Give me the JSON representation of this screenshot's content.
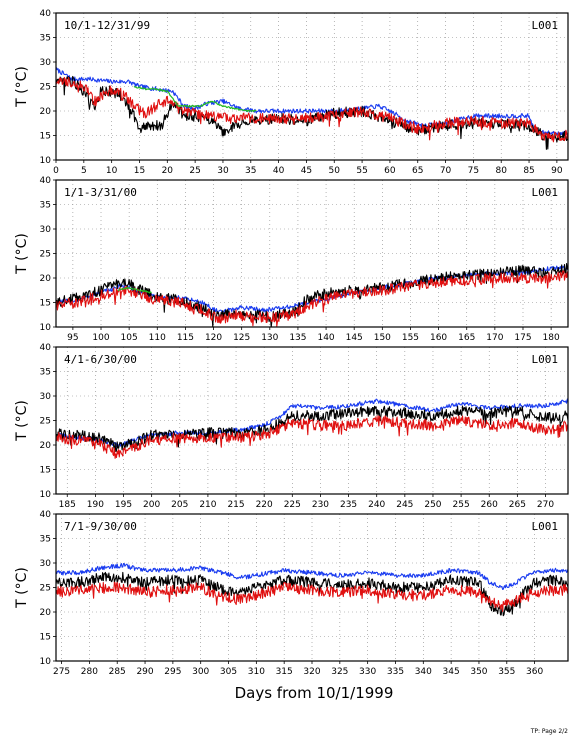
{
  "figure": {
    "xlabel": "Days from 10/1/1999",
    "footer": "TP: Page 2/2"
  },
  "chart_data": [
    {
      "type": "line",
      "title": "10/1-12/31/99",
      "station": "L001",
      "ylabel": "T (°C)",
      "xlim": [
        0,
        92
      ],
      "ylim": [
        10,
        40
      ],
      "xticks": [
        0,
        5,
        10,
        15,
        20,
        25,
        30,
        35,
        40,
        45,
        50,
        55,
        60,
        65,
        70,
        75,
        80,
        85,
        90
      ],
      "yticks": [
        10,
        15,
        20,
        25,
        30,
        35,
        40
      ],
      "grid": true,
      "series": [
        {
          "color": "#1a3cf0",
          "x": [
            0,
            3,
            6,
            10,
            13,
            15,
            18,
            21,
            23,
            25,
            27,
            30,
            33,
            36,
            40,
            45,
            50,
            55,
            58,
            60,
            63,
            66,
            70,
            75,
            79,
            82,
            85,
            86,
            88,
            90,
            92
          ],
          "y": [
            28.5,
            26.5,
            26.5,
            26,
            26,
            25,
            24.5,
            24,
            21,
            20.5,
            21.5,
            22,
            20.5,
            20,
            20,
            20,
            20,
            20.5,
            21,
            20,
            18,
            17,
            17.5,
            19,
            19,
            19,
            19,
            16,
            15.5,
            15.5,
            15.5
          ]
        },
        {
          "color": "#000000",
          "x": [
            0,
            3,
            5,
            7,
            8,
            10,
            12,
            14,
            15,
            17,
            19,
            21,
            23,
            25,
            28,
            30,
            32,
            35,
            40,
            45,
            50,
            55,
            60,
            65,
            70,
            75,
            80,
            85,
            88,
            92
          ],
          "y": [
            26,
            26,
            24,
            20.5,
            24,
            24,
            23,
            19,
            16.5,
            17,
            17,
            22,
            19,
            19,
            18,
            15.5,
            17,
            18,
            18.5,
            18,
            19.5,
            20,
            18,
            16,
            17,
            17.5,
            17.5,
            17,
            14.5,
            15
          ]
        },
        {
          "color": "#e01010",
          "x": [
            0,
            3,
            5,
            7,
            10,
            12,
            14,
            16,
            18,
            20,
            23,
            25,
            28,
            30,
            33,
            36,
            40,
            45,
            50,
            55,
            60,
            65,
            70,
            75,
            80,
            85,
            88,
            92
          ],
          "y": [
            26,
            26,
            25,
            22,
            24.5,
            23.5,
            21,
            19.5,
            21,
            22,
            20,
            19.5,
            19,
            18.5,
            18.5,
            18.5,
            18.5,
            18.5,
            19,
            20,
            18.5,
            16.5,
            17.5,
            18,
            17.5,
            17.5,
            14.5,
            15
          ]
        },
        {
          "color": "#22bb22",
          "x": [
            14,
            16,
            18,
            20,
            22,
            26,
            28,
            30,
            32,
            34,
            36
          ],
          "y": [
            25,
            24.5,
            24.5,
            24,
            21,
            21,
            22,
            21,
            20.5,
            20,
            20
          ]
        }
      ]
    },
    {
      "type": "line",
      "title": "1/1-3/31/00",
      "station": "L001",
      "ylabel": "T (°C)",
      "xlim": [
        92,
        183
      ],
      "ylim": [
        10,
        40
      ],
      "xticks": [
        95,
        100,
        105,
        110,
        115,
        120,
        125,
        130,
        135,
        140,
        145,
        150,
        155,
        160,
        165,
        170,
        175,
        180
      ],
      "yticks": [
        10,
        15,
        20,
        25,
        30,
        35,
        40
      ],
      "grid": true,
      "series": [
        {
          "color": "#1a3cf0",
          "x": [
            92,
            96,
            100,
            104,
            107,
            110,
            114,
            118,
            121,
            125,
            129,
            133,
            137,
            141,
            145,
            150,
            155,
            160,
            165,
            170,
            175,
            180,
            183
          ],
          "y": [
            15,
            15.5,
            17,
            18.5,
            17,
            16,
            16,
            15,
            13,
            14,
            13.5,
            14,
            15,
            16,
            17,
            18,
            19,
            20,
            20.5,
            21,
            21,
            22,
            22
          ]
        },
        {
          "color": "#000000",
          "x": [
            92,
            96,
            100,
            104,
            106,
            110,
            114,
            118,
            121,
            124,
            127,
            130,
            134,
            137,
            141,
            145,
            150,
            155,
            160,
            165,
            170,
            175,
            180,
            183
          ],
          "y": [
            15,
            16,
            17.5,
            19.5,
            18,
            16,
            15.5,
            14,
            12,
            13,
            12.5,
            12,
            13,
            16,
            17,
            17.5,
            18,
            19,
            20,
            20.5,
            21,
            21.5,
            21,
            22
          ]
        },
        {
          "color": "#e01010",
          "x": [
            92,
            96,
            100,
            104,
            106,
            110,
            114,
            118,
            121,
            124,
            127,
            130,
            134,
            137,
            141,
            145,
            150,
            155,
            160,
            165,
            170,
            175,
            180,
            183
          ],
          "y": [
            14.5,
            15,
            16.5,
            17.5,
            17,
            15.5,
            15,
            13.5,
            11.5,
            12.5,
            12,
            12,
            12.5,
            14.5,
            16,
            17,
            17.5,
            18.5,
            19,
            19.5,
            20,
            20,
            20,
            20.5
          ]
        },
        {
          "color": "#22bb22",
          "x": [
            103,
            105,
            107,
            109
          ],
          "y": [
            17.5,
            18,
            17.5,
            17
          ]
        }
      ]
    },
    {
      "type": "line",
      "title": "4/1-6/30/00",
      "station": "L001",
      "ylabel": "T (°C)",
      "xlim": [
        183,
        274
      ],
      "ylim": [
        10,
        40
      ],
      "xticks": [
        185,
        190,
        195,
        200,
        205,
        210,
        215,
        220,
        225,
        230,
        235,
        240,
        245,
        250,
        255,
        260,
        265,
        270
      ],
      "yticks": [
        10,
        15,
        20,
        25,
        30,
        35,
        40
      ],
      "grid": true,
      "series": [
        {
          "color": "#1a3cf0",
          "x": [
            183,
            187,
            191,
            194,
            197,
            200,
            205,
            210,
            215,
            220,
            223,
            225,
            230,
            235,
            240,
            245,
            250,
            255,
            260,
            265,
            270,
            274
          ],
          "y": [
            22,
            21.5,
            21,
            20,
            21,
            22,
            22.5,
            22.5,
            23,
            24,
            26,
            28,
            27.5,
            28,
            29,
            28,
            27,
            28.5,
            27.5,
            28,
            28,
            29
          ]
        },
        {
          "color": "#000000",
          "x": [
            183,
            187,
            191,
            194,
            197,
            200,
            205,
            210,
            215,
            220,
            223,
            225,
            230,
            235,
            240,
            245,
            250,
            255,
            260,
            265,
            270,
            274
          ],
          "y": [
            22.5,
            22,
            21.5,
            19.5,
            20.5,
            22,
            22,
            22.5,
            22.5,
            23,
            24.5,
            26,
            26,
            26.5,
            27,
            26.5,
            26,
            27,
            26.5,
            27,
            25.5,
            26
          ]
        },
        {
          "color": "#e01010",
          "x": [
            183,
            187,
            191,
            194,
            197,
            200,
            205,
            210,
            215,
            220,
            223,
            225,
            230,
            235,
            240,
            245,
            250,
            255,
            260,
            265,
            270,
            274
          ],
          "y": [
            21.5,
            21,
            20,
            18,
            19.5,
            21,
            21.5,
            21.5,
            21.5,
            22,
            23.5,
            24.5,
            24,
            24,
            25,
            24.5,
            24,
            25,
            24,
            24.5,
            23,
            24
          ]
        }
      ]
    },
    {
      "type": "line",
      "title": "7/1-9/30/00",
      "station": "L001",
      "ylabel": "T (°C)",
      "xlim": [
        274,
        366
      ],
      "ylim": [
        10,
        40
      ],
      "xticks": [
        275,
        280,
        285,
        290,
        295,
        300,
        305,
        310,
        315,
        320,
        325,
        330,
        335,
        340,
        345,
        350,
        355,
        360
      ],
      "yticks": [
        10,
        15,
        20,
        25,
        30,
        35,
        40
      ],
      "grid": true,
      "series": [
        {
          "color": "#1a3cf0",
          "x": [
            274,
            278,
            282,
            286,
            290,
            295,
            300,
            304,
            307,
            310,
            315,
            320,
            325,
            330,
            335,
            340,
            345,
            350,
            352,
            354,
            356,
            358,
            360,
            363,
            366
          ],
          "y": [
            28,
            28,
            29,
            29.5,
            28.5,
            28.5,
            29,
            28,
            27,
            27.5,
            28.5,
            28,
            27.5,
            28,
            27.5,
            27.5,
            28.5,
            28,
            26,
            25,
            25.5,
            27,
            28,
            28.5,
            28.5
          ]
        },
        {
          "color": "#000000",
          "x": [
            274,
            278,
            282,
            286,
            290,
            295,
            300,
            304,
            307,
            310,
            315,
            320,
            325,
            330,
            335,
            340,
            345,
            350,
            352,
            354,
            356,
            358,
            360,
            363,
            366
          ],
          "y": [
            26,
            26,
            27,
            27,
            26,
            26.5,
            26.5,
            24.5,
            24,
            25,
            26.5,
            26,
            25.5,
            26,
            25,
            25,
            26.5,
            26,
            21.5,
            20,
            21,
            24,
            26,
            26.5,
            26
          ]
        },
        {
          "color": "#e01010",
          "x": [
            274,
            278,
            282,
            286,
            290,
            295,
            300,
            304,
            307,
            310,
            315,
            320,
            325,
            330,
            335,
            340,
            345,
            350,
            352,
            354,
            356,
            358,
            360,
            363,
            366
          ],
          "y": [
            24,
            24.5,
            25,
            25,
            24,
            24.5,
            25,
            23,
            22.5,
            23.5,
            25,
            24.5,
            24,
            24.5,
            23.5,
            23.5,
            24.5,
            24,
            22,
            21.5,
            22,
            23,
            24,
            24.5,
            24.5
          ]
        }
      ]
    }
  ]
}
